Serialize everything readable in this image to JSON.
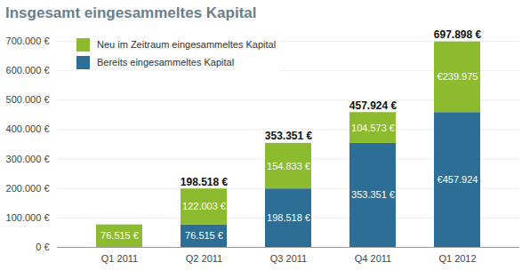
{
  "chart_data": {
    "type": "bar",
    "title": "Insgesamt eingesammeltes Kapital",
    "categories": [
      "Q1 2011",
      "Q2 2011",
      "Q3 2011",
      "Q4 2011",
      "Q1 2012"
    ],
    "series": [
      {
        "name": "Neu im Zeitraum eingesammeltes Kapital",
        "color": "#8dbb2f",
        "values": [
          76515,
          122003,
          154833,
          104573,
          239975
        ],
        "value_labels": [
          "76.515 €",
          "122.003 €",
          "154.833 €",
          "104.573 €",
          "€239.975"
        ]
      },
      {
        "name": "Bereits eingesammeltes Kapital",
        "color": "#2c6e95",
        "values": [
          null,
          76515,
          198518,
          353351,
          457924
        ],
        "value_labels": [
          null,
          "76.515 €",
          "198.518 €",
          "353.351 €",
          "€457.924"
        ]
      }
    ],
    "totals": [
      null,
      198518,
      353351,
      457924,
      697898
    ],
    "total_labels": [
      null,
      "198.518 €",
      "353.351 €",
      "457.924 €",
      "697.898 €"
    ],
    "ylim": [
      0,
      700000
    ],
    "yticks": [
      {
        "value": 0,
        "label": "0 €"
      },
      {
        "value": 100000,
        "label": "100.000 €"
      },
      {
        "value": 200000,
        "label": "200.000 €"
      },
      {
        "value": 300000,
        "label": "300.000 €"
      },
      {
        "value": 400000,
        "label": "400.000 €"
      },
      {
        "value": 500000,
        "label": "500.000 €"
      },
      {
        "value": 600000,
        "label": "600.000 €"
      },
      {
        "value": 700000,
        "label": "700.000 €"
      }
    ],
    "stacked": true,
    "data_labels": true,
    "grid": true,
    "legend": "top-left"
  }
}
